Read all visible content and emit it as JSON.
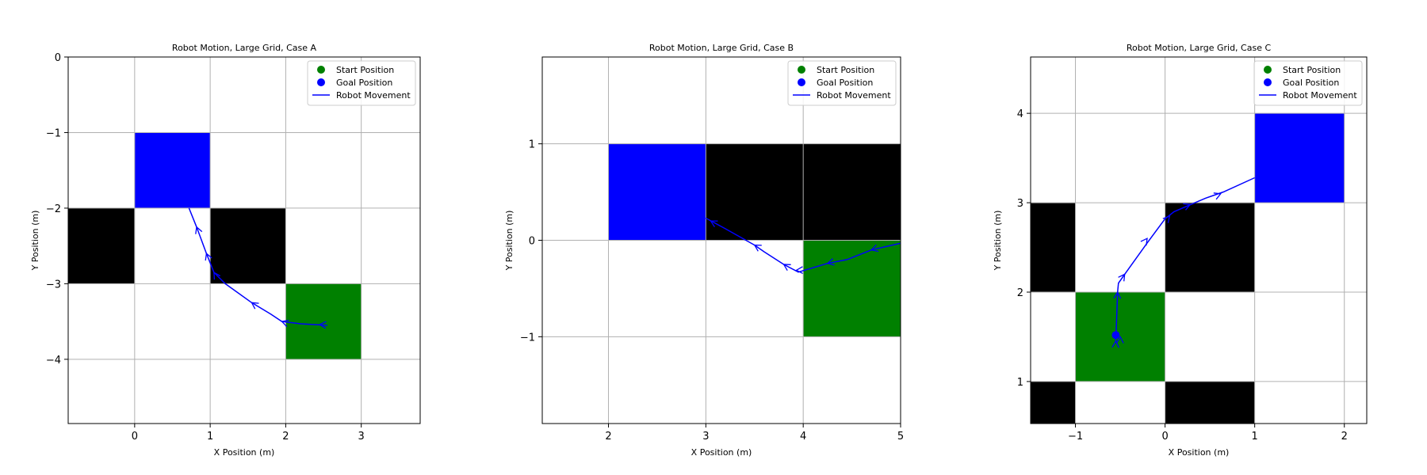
{
  "chart_data": [
    {
      "type": "line",
      "title": "Robot Motion, Large Grid, Case A",
      "xlabel": "X Position (m)",
      "ylabel": "Y Position (m)",
      "xlim": [
        -0.88,
        3.78
      ],
      "ylim": [
        -4.85,
        0
      ],
      "xticks": [
        0,
        1,
        2,
        3
      ],
      "yticks": [
        0,
        -1,
        -2,
        -3,
        -4
      ],
      "xtick_labels": [
        "0",
        "1",
        "2",
        "3"
      ],
      "ytick_labels": [
        "0",
        "−1",
        "−2",
        "−3",
        "−4"
      ],
      "grid": true,
      "cells": [
        {
          "x": 0,
          "y": -2,
          "kind": "goal"
        },
        {
          "x": -1,
          "y": -3,
          "kind": "obstacle"
        },
        {
          "x": 1,
          "y": -3,
          "kind": "obstacle"
        },
        {
          "x": 2,
          "y": -4,
          "kind": "start"
        }
      ],
      "path": [
        [
          2.55,
          -3.55
        ],
        [
          2.2,
          -3.53
        ],
        [
          1.95,
          -3.5
        ],
        [
          1.8,
          -3.4
        ],
        [
          1.55,
          -3.25
        ],
        [
          1.2,
          -3.0
        ],
        [
          1.05,
          -2.85
        ],
        [
          0.95,
          -2.6
        ],
        [
          0.82,
          -2.25
        ],
        [
          0.72,
          -2.0
        ]
      ],
      "arrows": [
        [
          1.05,
          -2.85
        ],
        [
          0.95,
          -2.6
        ],
        [
          0.82,
          -2.25
        ],
        [
          1.55,
          -3.25
        ],
        [
          1.95,
          -3.5
        ],
        [
          2.45,
          -3.54
        ]
      ],
      "legend": {
        "placement": "top-right",
        "entries": [
          "Start Position",
          "Goal Position",
          "Robot Movement"
        ]
      }
    },
    {
      "type": "line",
      "title": "Robot Motion, Large Grid, Case B",
      "xlabel": "X Position (m)",
      "ylabel": "Y Position (m)",
      "xlim": [
        1.32,
        5
      ],
      "ylim": [
        -1.9,
        1.9
      ],
      "xticks": [
        2,
        3,
        4,
        5
      ],
      "yticks": [
        1,
        0,
        -1
      ],
      "xtick_labels": [
        "2",
        "3",
        "4",
        "5"
      ],
      "ytick_labels": [
        "1",
        "0",
        "−1"
      ],
      "grid": true,
      "cells": [
        {
          "x": 2,
          "y": 0,
          "kind": "goal"
        },
        {
          "x": 3,
          "y": 0,
          "kind": "obstacle"
        },
        {
          "x": 4,
          "y": 0,
          "kind": "obstacle"
        },
        {
          "x": 4,
          "y": -1,
          "kind": "start"
        }
      ],
      "path": [
        [
          5.0,
          -0.03
        ],
        [
          4.7,
          -0.1
        ],
        [
          4.45,
          -0.2
        ],
        [
          4.25,
          -0.24
        ],
        [
          3.95,
          -0.33
        ],
        [
          3.8,
          -0.25
        ],
        [
          3.6,
          -0.12
        ],
        [
          3.5,
          -0.05
        ],
        [
          3.2,
          0.12
        ],
        [
          3.0,
          0.23
        ]
      ],
      "arrows": [
        [
          3.5,
          -0.05
        ],
        [
          3.8,
          -0.25
        ],
        [
          3.93,
          -0.31
        ],
        [
          4.25,
          -0.24
        ],
        [
          4.7,
          -0.1
        ],
        [
          3.05,
          0.2
        ]
      ],
      "legend": {
        "placement": "top-right",
        "entries": [
          "Start Position",
          "Goal Position",
          "Robot Movement"
        ]
      }
    },
    {
      "type": "line",
      "title": "Robot Motion, Large Grid, Case C",
      "xlabel": "X Position (m)",
      "ylabel": "Y Position (m)",
      "xlim": [
        -1.5,
        2.25
      ],
      "ylim": [
        0.53,
        4.63
      ],
      "xticks": [
        -1,
        0,
        1,
        2
      ],
      "yticks": [
        4,
        3,
        2,
        1
      ],
      "xtick_labels": [
        "−1",
        "0",
        "1",
        "2"
      ],
      "ytick_labels": [
        "4",
        "3",
        "2",
        "1"
      ],
      "grid": true,
      "cells": [
        {
          "x": 1,
          "y": 3,
          "kind": "goal"
        },
        {
          "x": -2,
          "y": 2,
          "kind": "obstacle"
        },
        {
          "x": 0,
          "y": 2,
          "kind": "obstacle"
        },
        {
          "x": -2,
          "y": 0,
          "kind": "obstacle"
        },
        {
          "x": 0,
          "y": 0,
          "kind": "obstacle"
        },
        {
          "x": -1,
          "y": 1,
          "kind": "start"
        }
      ],
      "path": [
        [
          -0.55,
          1.45
        ],
        [
          -0.54,
          1.7
        ],
        [
          -0.53,
          2.0
        ],
        [
          -0.52,
          2.1
        ],
        [
          -0.45,
          2.2
        ],
        [
          -0.2,
          2.55
        ],
        [
          0.0,
          2.82
        ],
        [
          0.1,
          2.9
        ],
        [
          0.45,
          3.05
        ],
        [
          0.65,
          3.12
        ],
        [
          1.0,
          3.28
        ]
      ],
      "arrows": [
        [
          -0.53,
          2.0
        ],
        [
          -0.45,
          2.2
        ],
        [
          -0.2,
          2.6
        ],
        [
          0.05,
          2.85
        ],
        [
          0.28,
          2.98
        ],
        [
          0.62,
          3.1
        ],
        [
          -0.55,
          1.45
        ],
        [
          -0.5,
          1.5
        ]
      ],
      "markers": [
        {
          "x": -0.55,
          "y": 1.52,
          "kind": "goal"
        }
      ],
      "legend": {
        "placement": "top-right",
        "entries": [
          "Start Position",
          "Goal Position",
          "Robot Movement"
        ]
      }
    }
  ],
  "colors": {
    "start": "#008000",
    "goal": "#0000ff",
    "obstacle": "#000000",
    "path": "#0000ff",
    "grid": "#b0b0b0"
  }
}
